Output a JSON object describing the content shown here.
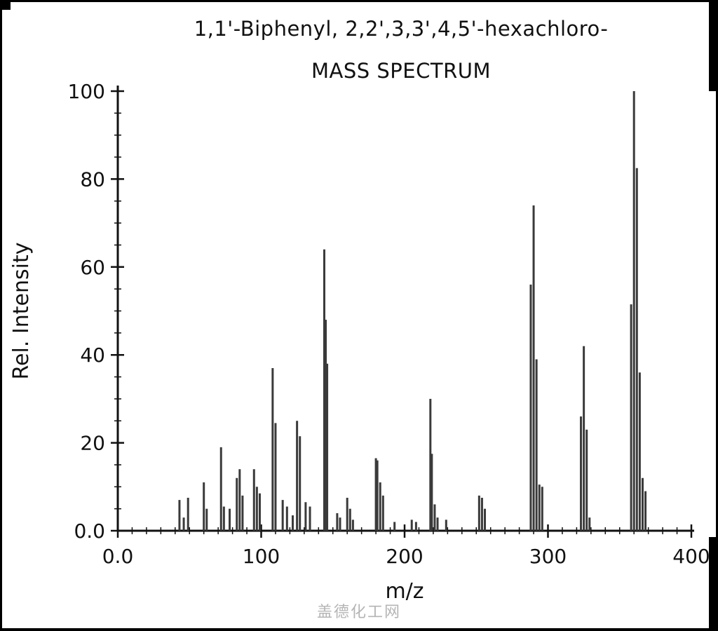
{
  "page": {
    "title_line1": "1,1'-Biphenyl, 2,2',3,3',4,5'-hexachloro-",
    "title_line2": "MASS SPECTRUM",
    "watermark": "盖德化工网"
  },
  "colors": {
    "bar": "#3a3a3a",
    "axis": "#111111",
    "text": "#111111",
    "watermark": "#b5b5b5"
  },
  "chart_data": {
    "type": "bar",
    "title": "MASS SPECTRUM",
    "subtitle": "1,1'-Biphenyl, 2,2',3,3',4,5'-hexachloro-",
    "xlabel": "m/z",
    "ylabel": "Rel. Intensity",
    "xlim": [
      0,
      400
    ],
    "ylim": [
      0,
      100
    ],
    "x_ticks": [
      0,
      100,
      200,
      300,
      400
    ],
    "x_tick_labels": [
      "0.0",
      "100",
      "200",
      "300",
      "400"
    ],
    "y_ticks": [
      0,
      20,
      40,
      60,
      80,
      100
    ],
    "y_tick_labels": [
      "0.0",
      "20",
      "40",
      "60",
      "80",
      "100"
    ],
    "x_minor_step": 10,
    "y_minor_step": 5,
    "grid": false,
    "legend": null,
    "peaks": [
      {
        "mz": 43,
        "intensity": 7
      },
      {
        "mz": 46,
        "intensity": 3
      },
      {
        "mz": 49,
        "intensity": 7.5
      },
      {
        "mz": 60,
        "intensity": 11
      },
      {
        "mz": 62,
        "intensity": 5
      },
      {
        "mz": 72,
        "intensity": 19
      },
      {
        "mz": 74,
        "intensity": 5.5
      },
      {
        "mz": 78,
        "intensity": 5
      },
      {
        "mz": 83,
        "intensity": 12
      },
      {
        "mz": 85,
        "intensity": 14
      },
      {
        "mz": 87,
        "intensity": 8
      },
      {
        "mz": 95,
        "intensity": 14
      },
      {
        "mz": 97,
        "intensity": 10
      },
      {
        "mz": 99,
        "intensity": 8.5
      },
      {
        "mz": 108,
        "intensity": 37
      },
      {
        "mz": 110,
        "intensity": 24.5
      },
      {
        "mz": 115,
        "intensity": 7
      },
      {
        "mz": 118,
        "intensity": 5.5
      },
      {
        "mz": 122,
        "intensity": 3.5
      },
      {
        "mz": 125,
        "intensity": 25
      },
      {
        "mz": 127,
        "intensity": 21.5
      },
      {
        "mz": 131,
        "intensity": 6.5
      },
      {
        "mz": 134,
        "intensity": 5.5
      },
      {
        "mz": 144,
        "intensity": 64
      },
      {
        "mz": 145,
        "intensity": 48
      },
      {
        "mz": 146,
        "intensity": 38
      },
      {
        "mz": 153,
        "intensity": 4
      },
      {
        "mz": 155,
        "intensity": 3
      },
      {
        "mz": 160,
        "intensity": 7.5
      },
      {
        "mz": 162,
        "intensity": 5
      },
      {
        "mz": 164,
        "intensity": 2.5
      },
      {
        "mz": 180,
        "intensity": 16.5
      },
      {
        "mz": 181,
        "intensity": 16
      },
      {
        "mz": 183,
        "intensity": 11
      },
      {
        "mz": 185,
        "intensity": 8
      },
      {
        "mz": 193,
        "intensity": 2
      },
      {
        "mz": 205,
        "intensity": 2.5
      },
      {
        "mz": 208,
        "intensity": 2
      },
      {
        "mz": 218,
        "intensity": 30
      },
      {
        "mz": 219,
        "intensity": 17.5
      },
      {
        "mz": 221,
        "intensity": 6
      },
      {
        "mz": 223,
        "intensity": 3
      },
      {
        "mz": 229,
        "intensity": 2.5
      },
      {
        "mz": 252,
        "intensity": 8
      },
      {
        "mz": 254,
        "intensity": 7.5
      },
      {
        "mz": 256,
        "intensity": 5
      },
      {
        "mz": 288,
        "intensity": 56
      },
      {
        "mz": 290,
        "intensity": 74
      },
      {
        "mz": 292,
        "intensity": 39
      },
      {
        "mz": 294,
        "intensity": 10.5
      },
      {
        "mz": 296,
        "intensity": 10
      },
      {
        "mz": 323,
        "intensity": 26
      },
      {
        "mz": 325,
        "intensity": 42
      },
      {
        "mz": 327,
        "intensity": 23
      },
      {
        "mz": 329,
        "intensity": 3
      },
      {
        "mz": 358,
        "intensity": 51.5
      },
      {
        "mz": 360,
        "intensity": 100
      },
      {
        "mz": 362,
        "intensity": 82.5
      },
      {
        "mz": 364,
        "intensity": 36
      },
      {
        "mz": 366,
        "intensity": 12
      },
      {
        "mz": 368,
        "intensity": 9
      }
    ]
  }
}
